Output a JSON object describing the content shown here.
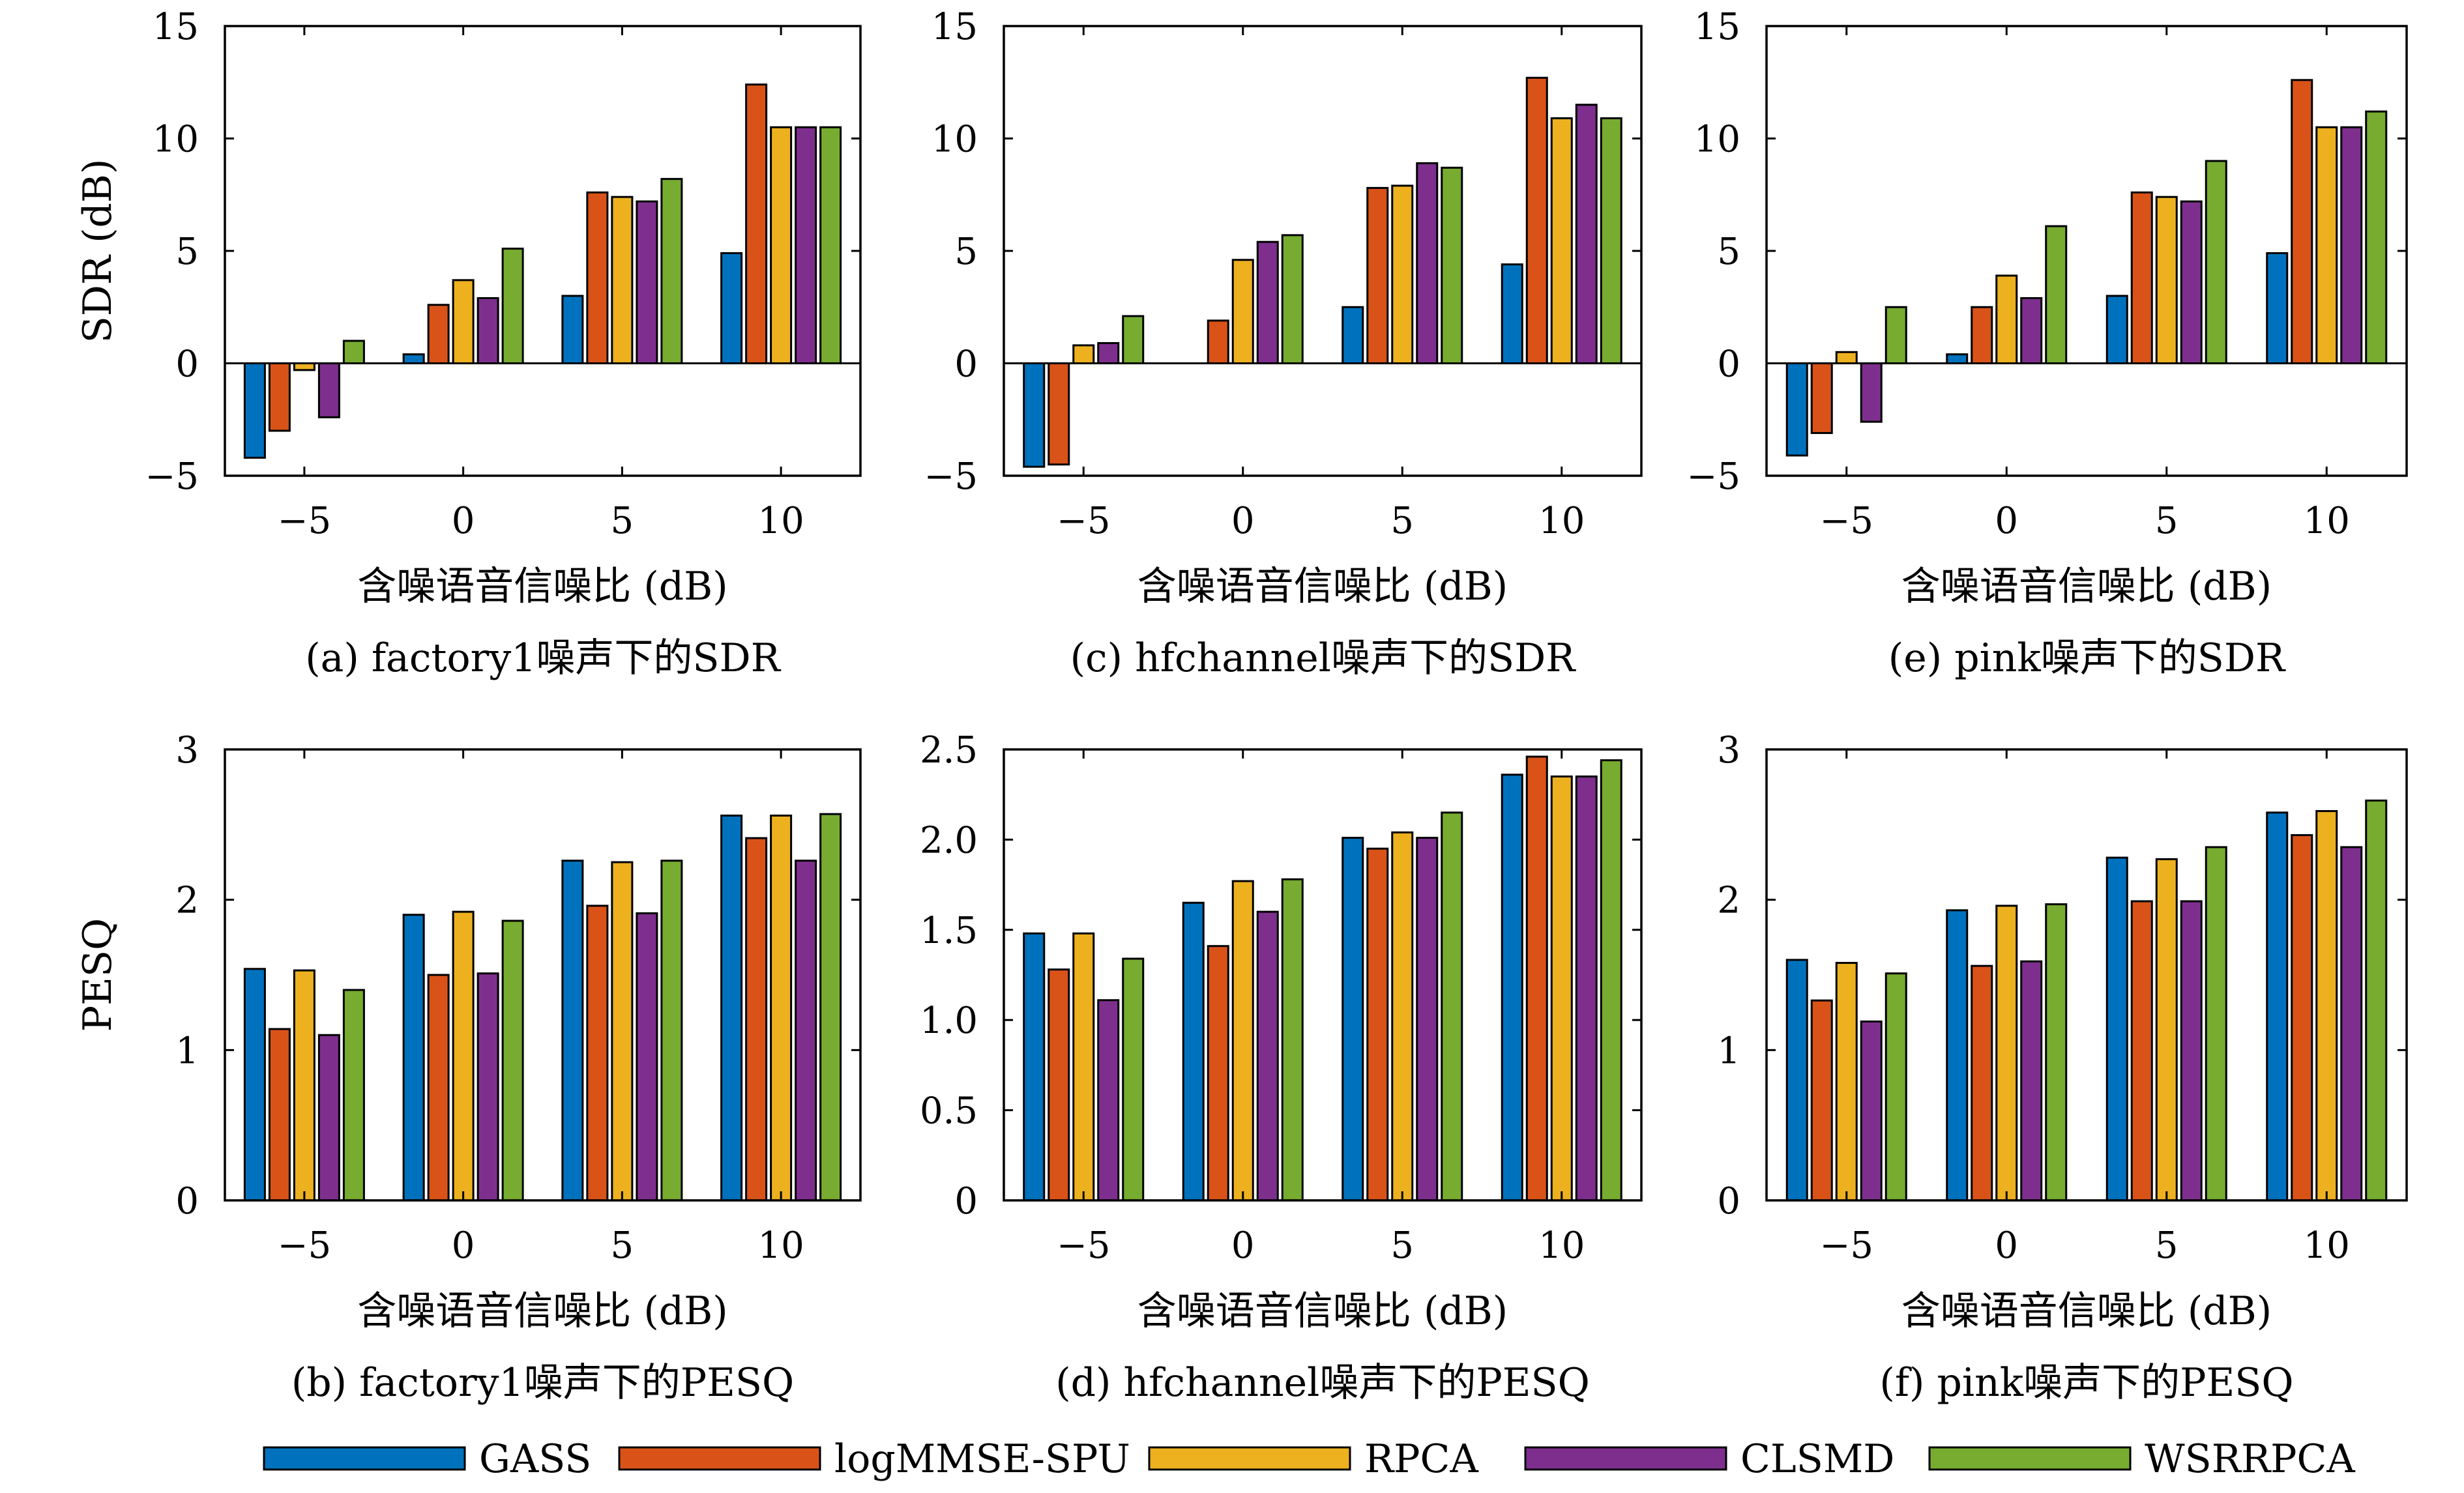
{
  "colors": {
    "GASS": "#0072BD",
    "logMMSE-SPU": "#D95319",
    "RPCA": "#EDB120",
    "CLSMD": "#7E2F8E",
    "WSRRPCA": "#77AC30"
  },
  "legend": {
    "entries": [
      "GASS",
      "logMMSE-SPU",
      "RPCA",
      "CLSMD",
      "WSRRPCA"
    ]
  },
  "chart_data": [
    {
      "id": "a",
      "type": "bar",
      "caption": "(a) factory1噪声下的SDR",
      "xlabel": "含噪语音信噪比 (dB)",
      "ylabel": "SDR (dB)",
      "categories": [
        "−5",
        "0",
        "5",
        "10"
      ],
      "ylim": [
        -5,
        15
      ],
      "yticks": [
        -5,
        0,
        5,
        10,
        15
      ],
      "ytick_labels": [
        "−5",
        "0",
        "5",
        "10",
        "15"
      ],
      "series": [
        {
          "name": "GASS",
          "values": [
            -4.2,
            0.4,
            3.0,
            4.9
          ]
        },
        {
          "name": "logMMSE-SPU",
          "values": [
            -3.0,
            2.6,
            7.6,
            12.4
          ]
        },
        {
          "name": "RPCA",
          "values": [
            -0.3,
            3.7,
            7.4,
            10.5
          ]
        },
        {
          "name": "CLSMD",
          "values": [
            -2.4,
            2.9,
            7.2,
            10.5
          ]
        },
        {
          "name": "WSRRPCA",
          "values": [
            1.0,
            5.1,
            8.2,
            10.5
          ]
        }
      ]
    },
    {
      "id": "c",
      "type": "bar",
      "caption": "(c) hfchannel噪声下的SDR",
      "xlabel": "含噪语音信噪比 (dB)",
      "ylabel": "",
      "categories": [
        "−5",
        "0",
        "5",
        "10"
      ],
      "ylim": [
        -5,
        15
      ],
      "yticks": [
        -5,
        0,
        5,
        10,
        15
      ],
      "ytick_labels": [
        "−5",
        "0",
        "5",
        "10",
        "15"
      ],
      "series": [
        {
          "name": "GASS",
          "values": [
            -4.6,
            0.0,
            2.5,
            4.4
          ]
        },
        {
          "name": "logMMSE-SPU",
          "values": [
            -4.5,
            1.9,
            7.8,
            12.7
          ]
        },
        {
          "name": "RPCA",
          "values": [
            0.8,
            4.6,
            7.9,
            10.9
          ]
        },
        {
          "name": "CLSMD",
          "values": [
            0.9,
            5.4,
            8.9,
            11.5
          ]
        },
        {
          "name": "WSRRPCA",
          "values": [
            2.1,
            5.7,
            8.7,
            10.9
          ]
        }
      ]
    },
    {
      "id": "e",
      "type": "bar",
      "caption": "(e) pink噪声下的SDR",
      "xlabel": "含噪语音信噪比 (dB)",
      "ylabel": "",
      "categories": [
        "−5",
        "0",
        "5",
        "10"
      ],
      "ylim": [
        -5,
        15
      ],
      "yticks": [
        -5,
        0,
        5,
        10,
        15
      ],
      "ytick_labels": [
        "−5",
        "0",
        "5",
        "10",
        "15"
      ],
      "series": [
        {
          "name": "GASS",
          "values": [
            -4.1,
            0.4,
            3.0,
            4.9
          ]
        },
        {
          "name": "logMMSE-SPU",
          "values": [
            -3.1,
            2.5,
            7.6,
            12.6
          ]
        },
        {
          "name": "RPCA",
          "values": [
            0.5,
            3.9,
            7.4,
            10.5
          ]
        },
        {
          "name": "CLSMD",
          "values": [
            -2.6,
            2.9,
            7.2,
            10.5
          ]
        },
        {
          "name": "WSRRPCA",
          "values": [
            2.5,
            6.1,
            9.0,
            11.2
          ]
        }
      ]
    },
    {
      "id": "b",
      "type": "bar",
      "caption": "(b) factory1噪声下的PESQ",
      "xlabel": "含噪语音信噪比 (dB)",
      "ylabel": "PESQ",
      "categories": [
        "−5",
        "0",
        "5",
        "10"
      ],
      "ylim": [
        0,
        3
      ],
      "yticks": [
        0,
        1,
        2,
        3
      ],
      "ytick_labels": [
        "0",
        "1",
        "2",
        "3"
      ],
      "series": [
        {
          "name": "GASS",
          "values": [
            1.54,
            1.9,
            2.26,
            2.56
          ]
        },
        {
          "name": "logMMSE-SPU",
          "values": [
            1.14,
            1.5,
            1.96,
            2.41
          ]
        },
        {
          "name": "RPCA",
          "values": [
            1.53,
            1.92,
            2.25,
            2.56
          ]
        },
        {
          "name": "CLSMD",
          "values": [
            1.1,
            1.51,
            1.91,
            2.26
          ]
        },
        {
          "name": "WSRRPCA",
          "values": [
            1.4,
            1.86,
            2.26,
            2.57
          ]
        }
      ]
    },
    {
      "id": "d",
      "type": "bar",
      "caption": "(d) hfchannel噪声下的PESQ",
      "xlabel": "含噪语音信噪比 (dB)",
      "ylabel": "",
      "categories": [
        "−5",
        "0",
        "5",
        "10"
      ],
      "ylim": [
        0,
        2.5
      ],
      "yticks": [
        0,
        0.5,
        1.0,
        1.5,
        2.0,
        2.5
      ],
      "ytick_labels": [
        "0",
        "0.5",
        "1.0",
        "1.5",
        "2.0",
        "2.5"
      ],
      "series": [
        {
          "name": "GASS",
          "values": [
            1.48,
            1.65,
            2.01,
            2.36
          ]
        },
        {
          "name": "logMMSE-SPU",
          "values": [
            1.28,
            1.41,
            1.95,
            2.46
          ]
        },
        {
          "name": "RPCA",
          "values": [
            1.48,
            1.77,
            2.04,
            2.35
          ]
        },
        {
          "name": "CLSMD",
          "values": [
            1.11,
            1.6,
            2.01,
            2.35
          ]
        },
        {
          "name": "WSRRPCA",
          "values": [
            1.34,
            1.78,
            2.15,
            2.44
          ]
        }
      ]
    },
    {
      "id": "f",
      "type": "bar",
      "caption": "(f) pink噪声下的PESQ",
      "xlabel": "含噪语音信噪比 (dB)",
      "ylabel": "",
      "categories": [
        "−5",
        "0",
        "5",
        "10"
      ],
      "ylim": [
        0,
        3
      ],
      "yticks": [
        0,
        1,
        2,
        3
      ],
      "ytick_labels": [
        "0",
        "1",
        "2",
        "3"
      ],
      "series": [
        {
          "name": "GASS",
          "values": [
            1.6,
            1.93,
            2.28,
            2.58
          ]
        },
        {
          "name": "logMMSE-SPU",
          "values": [
            1.33,
            1.56,
            1.99,
            2.43
          ]
        },
        {
          "name": "RPCA",
          "values": [
            1.58,
            1.96,
            2.27,
            2.59
          ]
        },
        {
          "name": "CLSMD",
          "values": [
            1.19,
            1.59,
            1.99,
            2.35
          ]
        },
        {
          "name": "WSRRPCA",
          "values": [
            1.51,
            1.97,
            2.35,
            2.66
          ]
        }
      ]
    }
  ]
}
